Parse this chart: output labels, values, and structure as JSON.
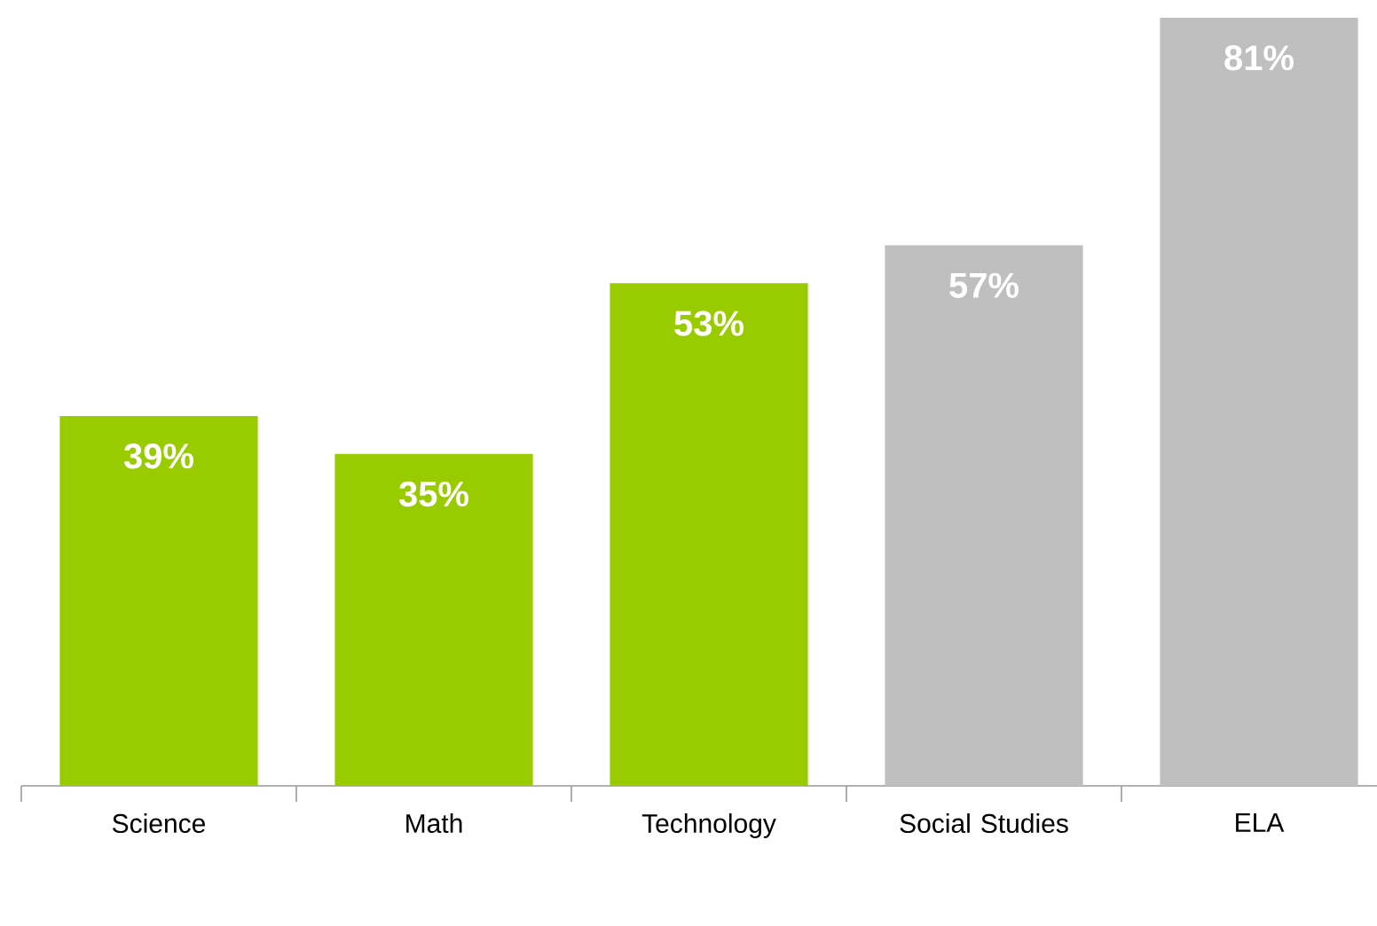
{
  "chart_data": {
    "type": "bar",
    "categories": [
      "Science",
      "Math",
      "Technology",
      "Social Studies",
      "ELA"
    ],
    "values": [
      39,
      35,
      53,
      57,
      81
    ],
    "colors": [
      "#99cc00",
      "#99cc00",
      "#99cc00",
      "#bfbfbf",
      "#bfbfbf"
    ],
    "value_labels": [
      "39%",
      "35%",
      "53%",
      "57%",
      "81%"
    ],
    "tick_labels": "x"
  }
}
